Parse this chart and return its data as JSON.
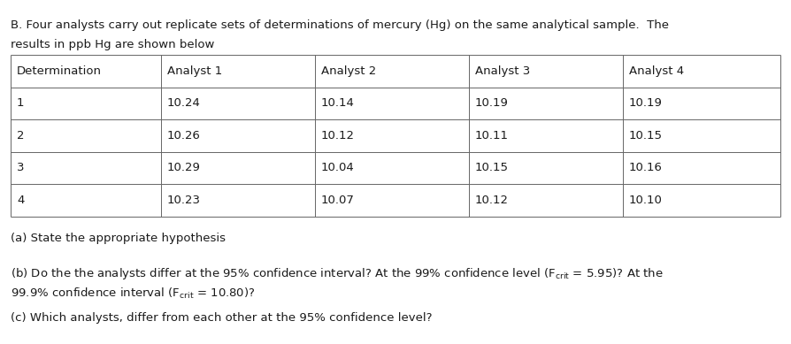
{
  "title_line1": "B. Four analysts carry out replicate sets of determinations of mercury (Hg) on the same analytical sample.  The",
  "title_line2": "results in ppb Hg are shown below",
  "table_headers": [
    "Determination",
    "Analyst 1",
    "Analyst 2",
    "Analyst 3",
    "Analyst 4"
  ],
  "table_rows": [
    [
      "1",
      "10.24",
      "10.14",
      "10.19",
      "10.19"
    ],
    [
      "2",
      "10.26",
      "10.12",
      "10.11",
      "10.15"
    ],
    [
      "3",
      "10.29",
      "10.04",
      "10.15",
      "10.16"
    ],
    [
      "4",
      "10.23",
      "10.07",
      "10.12",
      "10.10"
    ]
  ],
  "question_a": "(a) State the appropriate hypothesis",
  "question_b_line1": "(b) Do the the analysts differ at the 95% confidence interval? At the 99% confidence level (F$_{\\mathrm{crit}}$ = 5.95)? At the",
  "question_b_line2": "99.9% confidence interval (F$_{\\mathrm{crit}}$ = 10.80)?",
  "question_c": "(c) Which analysts, differ from each other at the 95% confidence level?",
  "bg_color": "#ffffff",
  "text_color": "#1a1a1a",
  "line_color": "#666666",
  "font_size": 9.5,
  "table_font_size": 9.5,
  "fig_width": 8.94,
  "fig_height": 3.89,
  "dpi": 100
}
